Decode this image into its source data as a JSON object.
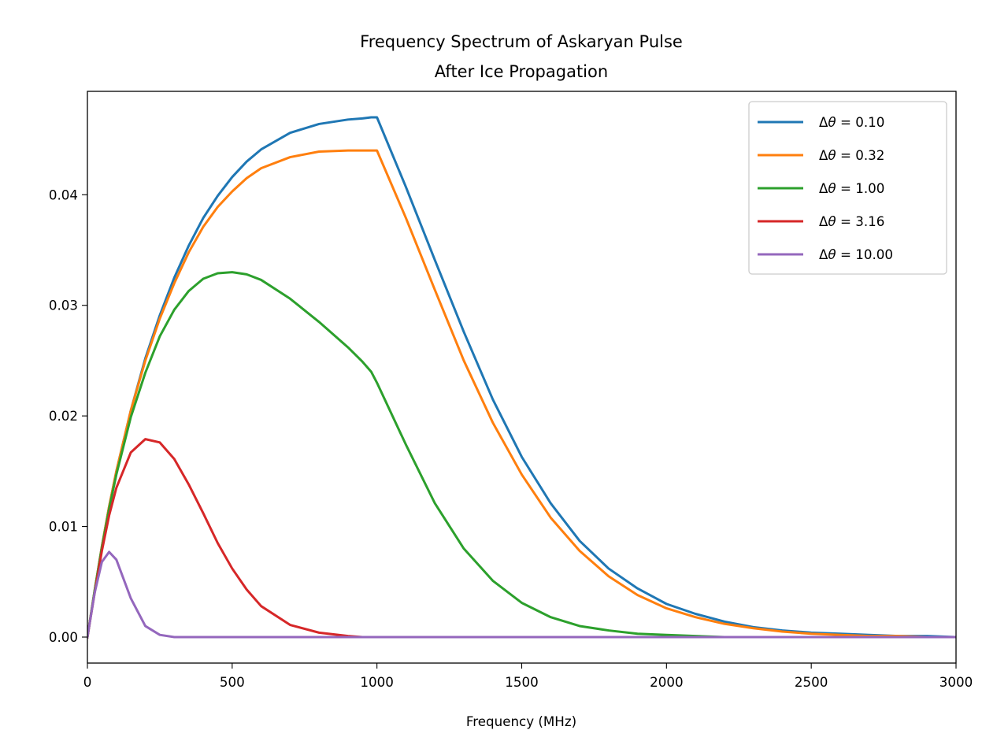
{
  "chart_data": {
    "type": "line",
    "title_lines": [
      "Frequency Spectrum of Askaryan Pulse",
      "After Ice Propagation"
    ],
    "xlabel": "Frequency (MHz)",
    "ylabel": "",
    "xlim": [
      0,
      3000
    ],
    "ylim": [
      -0.00235,
      0.04935
    ],
    "x_ticks": [
      0,
      500,
      1000,
      1500,
      2000,
      2500,
      3000
    ],
    "x_tick_labels": [
      "0",
      "500",
      "1000",
      "1500",
      "2000",
      "2500",
      "3000"
    ],
    "y_ticks": [
      0.0,
      0.01,
      0.02,
      0.03,
      0.04
    ],
    "y_tick_labels": [
      "0.00",
      "0.01",
      "0.02",
      "0.03",
      "0.04"
    ],
    "grid": false,
    "legend_position": "upper right",
    "x": [
      0,
      25,
      50,
      75,
      100,
      150,
      200,
      250,
      300,
      350,
      400,
      450,
      500,
      550,
      600,
      700,
      800,
      900,
      950,
      980,
      1000,
      1100,
      1200,
      1300,
      1400,
      1500,
      1600,
      1700,
      1800,
      1900,
      2000,
      2100,
      2200,
      2300,
      2400,
      2500,
      2600,
      2700,
      2800,
      2900,
      3000
    ],
    "series": [
      {
        "name": "Δθ = 0.10",
        "label_prefix": "Δ",
        "label_symbol": "θ",
        "label_value": " = 0.10",
        "color": "#1f77b4",
        "values": [
          0,
          0.0042,
          0.0082,
          0.0118,
          0.015,
          0.0205,
          0.0252,
          0.0291,
          0.0325,
          0.0354,
          0.0379,
          0.0399,
          0.0416,
          0.043,
          0.0441,
          0.0456,
          0.0464,
          0.0468,
          0.0469,
          0.047,
          0.047,
          0.0407,
          0.0341,
          0.0276,
          0.0215,
          0.0163,
          0.0121,
          0.0087,
          0.0062,
          0.0044,
          0.003,
          0.0021,
          0.0014,
          0.0009,
          0.0006,
          0.0004,
          0.0003,
          0.0002,
          0.0001,
          0.0001,
          0.0
        ]
      },
      {
        "name": "Δθ = 0.32",
        "label_prefix": "Δ",
        "label_symbol": "θ",
        "label_value": " = 0.32",
        "color": "#ff7f0e",
        "values": [
          0,
          0.0042,
          0.0082,
          0.0118,
          0.015,
          0.0205,
          0.025,
          0.0288,
          0.032,
          0.0348,
          0.0371,
          0.0389,
          0.0403,
          0.0415,
          0.0424,
          0.0434,
          0.0439,
          0.044,
          0.044,
          0.044,
          0.044,
          0.0379,
          0.0314,
          0.025,
          0.0194,
          0.0147,
          0.0108,
          0.0078,
          0.0055,
          0.0038,
          0.0026,
          0.0018,
          0.0012,
          0.0008,
          0.0005,
          0.0003,
          0.0002,
          0.0001,
          0.0001,
          0.0,
          0.0
        ]
      },
      {
        "name": "Δθ = 1.00",
        "label_prefix": "Δ",
        "label_symbol": "θ",
        "label_value": " = 1.00",
        "color": "#2ca02c",
        "values": [
          0,
          0.0042,
          0.0081,
          0.0116,
          0.0147,
          0.0199,
          0.0239,
          0.0272,
          0.0296,
          0.0313,
          0.0324,
          0.0329,
          0.033,
          0.0328,
          0.0323,
          0.0306,
          0.0285,
          0.0262,
          0.0249,
          0.024,
          0.023,
          0.0174,
          0.0121,
          0.008,
          0.0051,
          0.0031,
          0.0018,
          0.001,
          0.0006,
          0.0003,
          0.0002,
          0.0001,
          0.0,
          0.0,
          0.0,
          0.0,
          0.0,
          0.0,
          0.0,
          0.0,
          0.0
        ]
      },
      {
        "name": "Δθ = 3.16",
        "label_prefix": "Δ",
        "label_symbol": "θ",
        "label_value": " = 3.16",
        "color": "#d62728",
        "values": [
          0,
          0.004,
          0.0078,
          0.011,
          0.0135,
          0.0167,
          0.0179,
          0.0176,
          0.0161,
          0.0138,
          0.0112,
          0.0085,
          0.0062,
          0.0043,
          0.0028,
          0.0011,
          0.0004,
          0.0001,
          0.0,
          0.0,
          0.0,
          0.0,
          0.0,
          0.0,
          0.0,
          0.0,
          0.0,
          0.0,
          0.0,
          0.0,
          0.0,
          0.0,
          0.0,
          0.0,
          0.0,
          0.0,
          0.0,
          0.0,
          0.0,
          0.0,
          0.0
        ]
      },
      {
        "name": "Δθ = 10.00",
        "label_prefix": "Δ",
        "label_symbol": "θ",
        "label_value": " = 10.00",
        "color": "#9467bd",
        "values": [
          0,
          0.004,
          0.0068,
          0.0077,
          0.007,
          0.0035,
          0.001,
          0.0002,
          0.0,
          0.0,
          0.0,
          0.0,
          0.0,
          0.0,
          0.0,
          0.0,
          0.0,
          0.0,
          0.0,
          0.0,
          0.0,
          0.0,
          0.0,
          0.0,
          0.0,
          0.0,
          0.0,
          0.0,
          0.0,
          0.0,
          0.0,
          0.0,
          0.0,
          0.0,
          0.0,
          0.0,
          0.0,
          0.0,
          0.0,
          0.0,
          0.0
        ]
      }
    ]
  }
}
